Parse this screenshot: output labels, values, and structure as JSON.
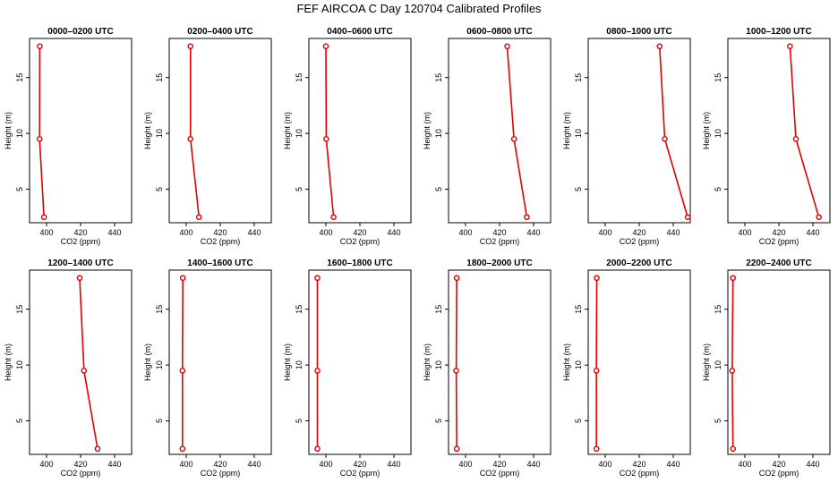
{
  "title": "FEF AIRCOA C  Day 120704  Calibrated Profiles",
  "colors": {
    "profile": "#e00000",
    "axis": "#000000",
    "background": "#ffffff"
  },
  "chart_data": [
    {
      "type": "line",
      "title": "0000–0200 UTC",
      "xlabel": "CO2 (ppm)",
      "ylabel": "Height (m)",
      "xlim": [
        390,
        450
      ],
      "ylim": [
        2,
        18.5
      ],
      "xticks": [
        400,
        420,
        440
      ],
      "yticks": [
        5,
        10,
        15
      ],
      "grid": false,
      "series": [
        {
          "x": [
            396.0,
            395.9,
            398.5
          ],
          "y": [
            17.8,
            9.5,
            2.5
          ]
        }
      ]
    },
    {
      "type": "line",
      "title": "0200–0400 UTC",
      "xlabel": "CO2 (ppm)",
      "ylabel": "Height (m)",
      "xlim": [
        390,
        450
      ],
      "ylim": [
        2,
        18.5
      ],
      "xticks": [
        400,
        420,
        440
      ],
      "yticks": [
        5,
        10,
        15
      ],
      "grid": false,
      "series": [
        {
          "x": [
            402.5,
            402.5,
            407.5
          ],
          "y": [
            17.8,
            9.5,
            2.5
          ]
        }
      ]
    },
    {
      "type": "line",
      "title": "0400–0600 UTC",
      "xlabel": "CO2 (ppm)",
      "ylabel": "Height (m)",
      "xlim": [
        390,
        450
      ],
      "ylim": [
        2,
        18.5
      ],
      "xticks": [
        400,
        420,
        440
      ],
      "yticks": [
        5,
        10,
        15
      ],
      "grid": false,
      "series": [
        {
          "x": [
            400.0,
            400.2,
            404.5
          ],
          "y": [
            17.8,
            9.5,
            2.5
          ]
        }
      ]
    },
    {
      "type": "line",
      "title": "0600–0800 UTC",
      "xlabel": "CO2 (ppm)",
      "ylabel": "Height (m)",
      "xlim": [
        390,
        450
      ],
      "ylim": [
        2,
        18.5
      ],
      "xticks": [
        400,
        420,
        440
      ],
      "yticks": [
        5,
        10,
        15
      ],
      "grid": false,
      "series": [
        {
          "x": [
            424.5,
            428.5,
            436.0
          ],
          "y": [
            17.8,
            9.5,
            2.5
          ]
        }
      ]
    },
    {
      "type": "line",
      "title": "0800–1000 UTC",
      "xlabel": "CO2 (ppm)",
      "ylabel": "Height (m)",
      "xlim": [
        390,
        450
      ],
      "ylim": [
        2,
        18.5
      ],
      "xticks": [
        400,
        420,
        440
      ],
      "yticks": [
        5,
        10,
        15
      ],
      "grid": false,
      "series": [
        {
          "x": [
            432.0,
            435.0,
            448.5
          ],
          "y": [
            17.8,
            9.5,
            2.5
          ]
        }
      ]
    },
    {
      "type": "line",
      "title": "1000–1200 UTC",
      "xlabel": "CO2 (ppm)",
      "ylabel": "Height (m)",
      "xlim": [
        390,
        450
      ],
      "ylim": [
        2,
        18.5
      ],
      "xticks": [
        400,
        420,
        440
      ],
      "yticks": [
        5,
        10,
        15
      ],
      "grid": false,
      "series": [
        {
          "x": [
            426.5,
            430.0,
            443.5
          ],
          "y": [
            17.8,
            9.5,
            2.5
          ]
        }
      ]
    },
    {
      "type": "line",
      "title": "1200–1400 UTC",
      "xlabel": "CO2 (ppm)",
      "ylabel": "Height (m)",
      "xlim": [
        390,
        450
      ],
      "ylim": [
        2,
        18.5
      ],
      "xticks": [
        400,
        420,
        440
      ],
      "yticks": [
        5,
        10,
        15
      ],
      "grid": false,
      "series": [
        {
          "x": [
            419.5,
            422.0,
            430.0
          ],
          "y": [
            17.8,
            9.5,
            2.5
          ]
        }
      ]
    },
    {
      "type": "line",
      "title": "1400–1600 UTC",
      "xlabel": "CO2 (ppm)",
      "ylabel": "Height (m)",
      "xlim": [
        390,
        450
      ],
      "ylim": [
        2,
        18.5
      ],
      "xticks": [
        400,
        420,
        440
      ],
      "yticks": [
        5,
        10,
        15
      ],
      "grid": false,
      "series": [
        {
          "x": [
            398.0,
            397.8,
            397.8
          ],
          "y": [
            17.8,
            9.5,
            2.5
          ]
        }
      ]
    },
    {
      "type": "line",
      "title": "1600–1800 UTC",
      "xlabel": "CO2 (ppm)",
      "ylabel": "Height (m)",
      "xlim": [
        390,
        450
      ],
      "ylim": [
        2,
        18.5
      ],
      "xticks": [
        400,
        420,
        440
      ],
      "yticks": [
        5,
        10,
        15
      ],
      "grid": false,
      "series": [
        {
          "x": [
            395.0,
            395.0,
            395.0
          ],
          "y": [
            17.8,
            9.5,
            2.5
          ]
        }
      ]
    },
    {
      "type": "line",
      "title": "1800–2000 UTC",
      "xlabel": "CO2 (ppm)",
      "ylabel": "Height (m)",
      "xlim": [
        390,
        450
      ],
      "ylim": [
        2,
        18.5
      ],
      "xticks": [
        400,
        420,
        440
      ],
      "yticks": [
        5,
        10,
        15
      ],
      "grid": false,
      "series": [
        {
          "x": [
            394.8,
            394.5,
            394.8
          ],
          "y": [
            17.8,
            9.5,
            2.5
          ]
        }
      ]
    },
    {
      "type": "line",
      "title": "2000–2200 UTC",
      "xlabel": "CO2 (ppm)",
      "ylabel": "Height (m)",
      "xlim": [
        390,
        450
      ],
      "ylim": [
        2,
        18.5
      ],
      "xticks": [
        400,
        420,
        440
      ],
      "yticks": [
        5,
        10,
        15
      ],
      "grid": false,
      "series": [
        {
          "x": [
            395.0,
            394.8,
            394.8
          ],
          "y": [
            17.8,
            9.5,
            2.5
          ]
        }
      ]
    },
    {
      "type": "line",
      "title": "2200–2400 UTC",
      "xlabel": "CO2 (ppm)",
      "ylabel": "Height (m)",
      "xlim": [
        390,
        450
      ],
      "ylim": [
        2,
        18.5
      ],
      "xticks": [
        400,
        420,
        440
      ],
      "yticks": [
        5,
        10,
        15
      ],
      "grid": false,
      "series": [
        {
          "x": [
            393.0,
            392.5,
            393.0
          ],
          "y": [
            17.8,
            9.5,
            2.5
          ]
        }
      ]
    }
  ]
}
